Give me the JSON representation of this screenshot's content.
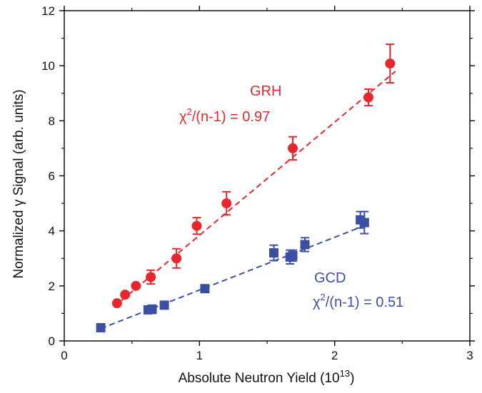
{
  "chart_data": {
    "type": "scatter",
    "xlabel": {
      "main": "Absolute Neutron Yield (10",
      "sup": "13",
      "end": ")"
    },
    "ylabel": "Normalized γ Signal (arb. units)",
    "xlim": [
      0,
      3
    ],
    "ylim": [
      0,
      12
    ],
    "x_ticks": [
      "0",
      "1",
      "2",
      "3"
    ],
    "y_ticks": [
      "0",
      "2",
      "4",
      "6",
      "8",
      "10",
      "12"
    ],
    "series": [
      {
        "name": "GRH",
        "color": "#e8262d",
        "marker": "circle",
        "points": [
          {
            "x": 0.39,
            "y": 1.37,
            "err": 0
          },
          {
            "x": 0.45,
            "y": 1.68,
            "err": 0
          },
          {
            "x": 0.53,
            "y": 2.0,
            "err": 0
          },
          {
            "x": 0.64,
            "y": 2.32,
            "err": 0.25
          },
          {
            "x": 0.83,
            "y": 3.0,
            "err": 0.35
          },
          {
            "x": 0.98,
            "y": 4.18,
            "err": 0.3
          },
          {
            "x": 1.2,
            "y": 5.0,
            "err": 0.42
          },
          {
            "x": 1.69,
            "y": 7.0,
            "err": 0.42
          },
          {
            "x": 2.25,
            "y": 8.85,
            "err": 0.3
          },
          {
            "x": 2.41,
            "y": 10.08,
            "err": 0.7
          }
        ],
        "fit": {
          "x": [
            0.37,
            2.45
          ],
          "y": [
            1.25,
            9.8
          ]
        },
        "annotation": {
          "name": "GRH",
          "stat_prefix": "χ",
          "stat_sup": "2",
          "stat_rest": "/(n-1) = 0.97"
        }
      },
      {
        "name": "GCD",
        "color": "#3a4fa2",
        "marker": "square",
        "points": [
          {
            "x": 0.27,
            "y": 0.48,
            "err": 0
          },
          {
            "x": 0.62,
            "y": 1.13,
            "err": 0
          },
          {
            "x": 0.65,
            "y": 1.15,
            "err": 0.15
          },
          {
            "x": 0.74,
            "y": 1.3,
            "err": 0
          },
          {
            "x": 1.04,
            "y": 1.9,
            "err": 0
          },
          {
            "x": 1.55,
            "y": 3.2,
            "err": 0.28
          },
          {
            "x": 1.67,
            "y": 3.05,
            "err": 0.25
          },
          {
            "x": 1.69,
            "y": 3.1,
            "err": 0.2
          },
          {
            "x": 1.78,
            "y": 3.5,
            "err": 0.25
          },
          {
            "x": 2.19,
            "y": 4.4,
            "err": 0.3
          },
          {
            "x": 2.22,
            "y": 4.3,
            "err": 0.4
          }
        ],
        "fit": {
          "x": [
            0.27,
            2.2
          ],
          "y": [
            0.45,
            4.15
          ]
        },
        "annotation": {
          "name": "GCD",
          "stat_prefix": "χ",
          "stat_sup": "2",
          "stat_rest": "/(n-1) = 0.51"
        }
      }
    ]
  }
}
